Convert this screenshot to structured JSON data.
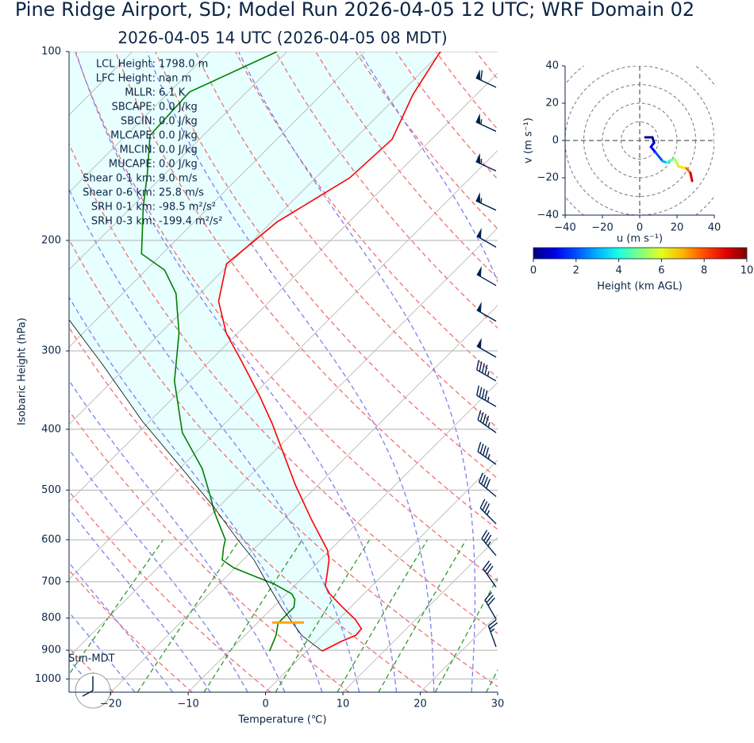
{
  "chart_data": [
    {
      "type": "skewt",
      "title": "Pine Ridge Airport, SD; Model Run 2026-04-05 12 UTC; WRF Domain 02",
      "subtitle": "2026-04-05 14 UTC  (2026-04-05 08 MDT)",
      "xlabel": "Temperature (℃)",
      "ylabel": "Isobaric Height (hPa)",
      "xlim": [
        -25.4,
        30
      ],
      "ylim": [
        1050,
        100
      ],
      "log_y": true,
      "grid": true,
      "xticks": [
        {
          "value": -20,
          "label": "−20"
        },
        {
          "value": -10,
          "label": "−10"
        },
        0,
        10,
        20,
        30
      ],
      "yticks": [
        100,
        200,
        300,
        400,
        500,
        600,
        700,
        800,
        900,
        1000
      ],
      "profiles": [
        {
          "color": "#ff0000",
          "pressure": [
            903,
            872,
            852,
            832,
            804,
            769,
            732,
            711,
            674,
            646,
            624,
            558,
            490,
            393,
            355,
            312,
            281,
            250,
            218,
            187,
            159,
            138,
            117,
            100
          ],
          "temperature": [
            2.0,
            3.2,
            4.3,
            4.2,
            2.2,
            -1.0,
            -4.4,
            -6.0,
            -7.6,
            -8.9,
            -10.3,
            -16.3,
            -23.0,
            -33.7,
            -38.9,
            -45.8,
            -51.5,
            -56.6,
            -60.4,
            -59.3,
            -55.6,
            -55.1,
            -58.2,
            -60.2
          ]
        },
        {
          "color": "#008000",
          "pressure": [
            903,
            890,
            852,
            815,
            792,
            769,
            747,
            732,
            705,
            685,
            665,
            646,
            618,
            600,
            542,
            511,
            462,
            405,
            335,
            281,
            243,
            223,
            210,
            177,
            157,
            136,
            116,
            100
          ],
          "temperature": [
            -4.8,
            -5.1,
            -6.0,
            -7.3,
            -7.3,
            -7.3,
            -8.2,
            -9.3,
            -13.0,
            -16.6,
            -20.2,
            -22.7,
            -24.1,
            -24.9,
            -29.9,
            -32.5,
            -37.1,
            -44.3,
            -52.0,
            -57.6,
            -63.1,
            -67.6,
            -72.7,
            -78.5,
            -82.2,
            -86.9,
            -87.4,
            -81.3
          ]
        },
        {
          "color": "#000000",
          "fill": "#e8ffff",
          "pressure": [
            903,
            852,
            769,
            715,
            646,
            600,
            534,
            462,
            388,
            316,
            266
          ],
          "temperature": [
            2.0,
            -2.7,
            -8.9,
            -13.0,
            -18.6,
            -23.3,
            -30.4,
            -39.7,
            -51.0,
            -63.3,
            -73.9
          ]
        }
      ],
      "lcl": {
        "pressure": 813,
        "temperature": -6.1,
        "color": "#ffa500"
      },
      "barbs": {
        "color": "#002050",
        "pressure": [
          114,
          134,
          155,
          179,
          205,
          236,
          269,
          307,
          335,
          368,
          405,
          455,
          512,
          566,
          636,
          714,
          803,
          889
        ],
        "speed": [
          60,
          55,
          55,
          55,
          50,
          50,
          50,
          50,
          45,
          45,
          45,
          45,
          40,
          35,
          35,
          30,
          30,
          25
        ],
        "direction": [
          295,
          295,
          295,
          295,
          300,
          300,
          300,
          300,
          300,
          300,
          305,
          305,
          310,
          315,
          320,
          325,
          330,
          340
        ]
      },
      "stats": [
        {
          "label": "LCL Height:",
          "value": "1798.0 m"
        },
        {
          "label": "LFC Height:",
          "value": "nan m"
        },
        {
          "label": "MLLR:",
          "value": "6.1 K"
        },
        {
          "label": "SBCAPE:",
          "value": "0.0 J/kg"
        },
        {
          "label": "SBCIN:",
          "value": "0.0 J/kg"
        },
        {
          "label": "MLCAPE:",
          "value": "0.0 J/kg"
        },
        {
          "label": "MLCIN:",
          "value": "0.0 J/kg"
        },
        {
          "label": "MUCAPE:",
          "value": "0.0 J/kg"
        },
        {
          "label": "Shear 0-1 km:",
          "value": "9.0 m/s"
        },
        {
          "label": "Shear 0-6 km:",
          "value": "25.8 m/s"
        },
        {
          "label": "SRH 0-1 km:",
          "value": "-98.5 m²/s²"
        },
        {
          "label": "SRH 0-3 km:",
          "value": "-199.4 m²/s²"
        }
      ],
      "note": "Sun-MDT"
    },
    {
      "type": "hodograph",
      "xlabel": "u (m s⁻¹)",
      "ylabel": "v (m s⁻¹)",
      "xlim": [
        -40,
        40
      ],
      "ylim": [
        -40,
        40
      ],
      "xticks": [
        {
          "value": -40,
          "label": "−40"
        },
        {
          "value": -20,
          "label": "−20"
        },
        0,
        20,
        40
      ],
      "yticks": [
        {
          "value": -40,
          "label": "−40"
        },
        {
          "value": -20,
          "label": "−20"
        },
        0,
        20,
        40
      ],
      "u": [
        3.0,
        6.8,
        7.7,
        6.0,
        8.5,
        12.3,
        14.5,
        16.6,
        18.7,
        20.9,
        25.1,
        27.2,
        28.1
      ],
      "v": [
        1.7,
        1.7,
        -1.3,
        -3.4,
        -6.4,
        -11.1,
        -11.9,
        -10.6,
        -9.8,
        -14.0,
        -14.9,
        -17.4,
        -21.7
      ],
      "height": [
        0,
        0.3,
        0.6,
        1,
        1.5,
        2.5,
        3.5,
        4.5,
        5,
        6,
        7,
        8.5,
        9.8
      ],
      "colorbar": {
        "label": "Height (km AGL)",
        "lim": [
          0,
          10
        ],
        "ticks": [
          0,
          2,
          4,
          6,
          8,
          10
        ],
        "colormap": "jet"
      }
    }
  ]
}
